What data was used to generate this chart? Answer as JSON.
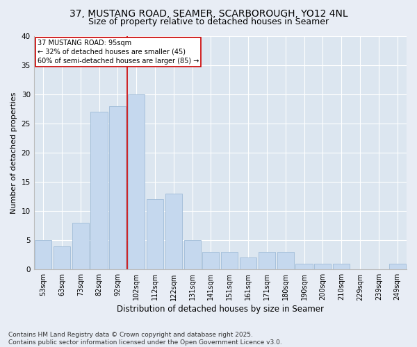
{
  "title_line1": "37, MUSTANG ROAD, SEAMER, SCARBOROUGH, YO12 4NL",
  "title_line2": "Size of property relative to detached houses in Seamer",
  "xlabel": "Distribution of detached houses by size in Seamer",
  "ylabel": "Number of detached properties",
  "bar_labels": [
    "53sqm",
    "63sqm",
    "73sqm",
    "82sqm",
    "92sqm",
    "102sqm",
    "112sqm",
    "122sqm",
    "131sqm",
    "141sqm",
    "151sqm",
    "161sqm",
    "171sqm",
    "180sqm",
    "190sqm",
    "200sqm",
    "210sqm",
    "229sqm",
    "239sqm",
    "249sqm"
  ],
  "bar_values": [
    5,
    4,
    8,
    27,
    28,
    30,
    12,
    13,
    5,
    3,
    3,
    2,
    3,
    3,
    1,
    1,
    1,
    0,
    0,
    1
  ],
  "bar_color": "#c5d8ee",
  "bar_edgecolor": "#a0bcd8",
  "vline_color": "#cc0000",
  "vline_x_index": 4.5,
  "annotation_text": "37 MUSTANG ROAD: 95sqm\n← 32% of detached houses are smaller (45)\n60% of semi-detached houses are larger (85) →",
  "annotation_box_edgecolor": "#cc0000",
  "annotation_box_facecolor": "#ffffff",
  "ylim": [
    0,
    40
  ],
  "yticks": [
    0,
    5,
    10,
    15,
    20,
    25,
    30,
    35,
    40
  ],
  "footer_line1": "Contains HM Land Registry data © Crown copyright and database right 2025.",
  "footer_line2": "Contains public sector information licensed under the Open Government Licence v3.0.",
  "bg_color": "#e8edf5",
  "plot_bg_color": "#dce6f0",
  "grid_color": "#ffffff",
  "title_fontsize": 10,
  "subtitle_fontsize": 9,
  "axis_label_fontsize": 8,
  "tick_fontsize": 7,
  "annotation_fontsize": 7,
  "footer_fontsize": 6.5
}
